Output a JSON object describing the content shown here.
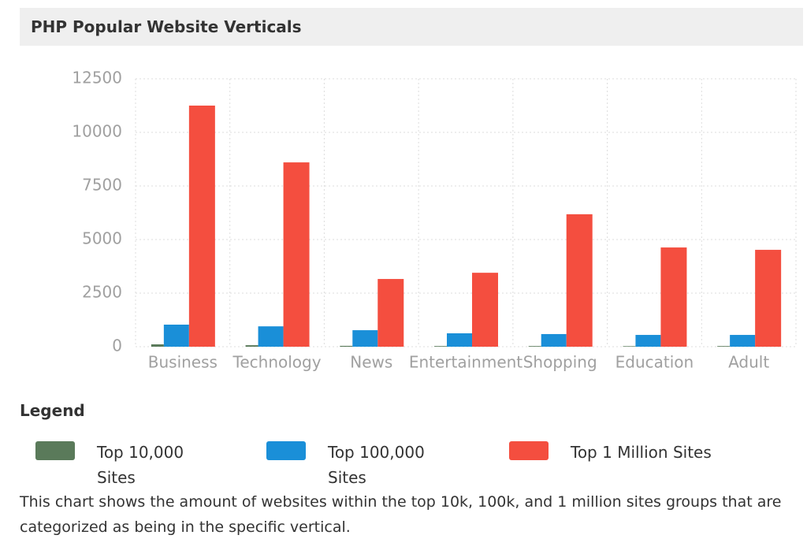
{
  "chart_data": {
    "type": "bar",
    "title": "PHP Popular Website Verticals",
    "categories": [
      "Business",
      "Technology",
      "News",
      "Entertainment",
      "Shopping",
      "Education",
      "Adult"
    ],
    "series": [
      {
        "name": "Top 10,000 Sites",
        "color": "#5a7a5a",
        "values": [
          110,
          70,
          40,
          30,
          30,
          25,
          30
        ]
      },
      {
        "name": "Top 100,000 Sites",
        "color": "#1a8fd8",
        "values": [
          1030,
          950,
          770,
          625,
          590,
          550,
          550
        ]
      },
      {
        "name": "Top 1 Million Sites",
        "color": "#f44e3f",
        "values": [
          11250,
          8600,
          3160,
          3450,
          6180,
          4630,
          4520
        ]
      }
    ],
    "ylim": [
      0,
      12500
    ],
    "yticks": [
      0,
      2500,
      5000,
      7500,
      10000,
      12500
    ],
    "grid": true
  },
  "legend_heading": "Legend",
  "description": "This chart shows the amount of websites within the top 10k, 100k, and 1 million sites groups that are categorized as being in the specific vertical."
}
